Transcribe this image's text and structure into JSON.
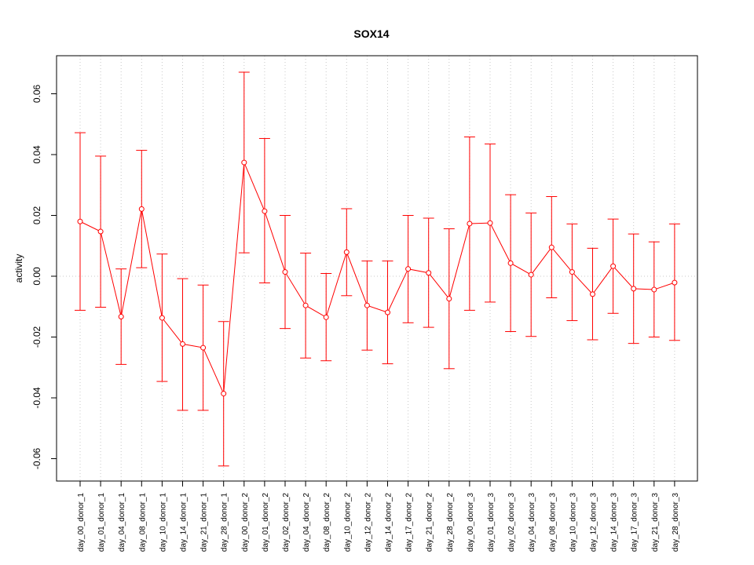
{
  "chart_data": {
    "type": "line",
    "title": "SOX14",
    "xlabel": "",
    "ylabel": "activity",
    "ylim": [
      -0.068,
      0.072
    ],
    "yticks": [
      -0.06,
      -0.04,
      -0.02,
      0.0,
      0.02,
      0.04,
      0.06
    ],
    "ytick_labels": [
      "-0.06",
      "-0.04",
      "-0.02",
      "0.00",
      "0.02",
      "0.04",
      "0.06"
    ],
    "grid": "vertical dotted at each category, dotted horizontal at 0",
    "legend": "none",
    "colors": {
      "series": "#ff0000",
      "grid": "#c8c8c8",
      "axis": "#000000"
    },
    "categories": [
      "day_00_donor_1",
      "day_01_donor_1",
      "day_04_donor_1",
      "day_08_donor_1",
      "day_10_donor_1",
      "day_14_donor_1",
      "day_21_donor_1",
      "day_28_donor_1",
      "day_00_donor_2",
      "day_01_donor_2",
      "day_02_donor_2",
      "day_04_donor_2",
      "day_08_donor_2",
      "day_10_donor_2",
      "day_12_donor_2",
      "day_14_donor_2",
      "day_17_donor_2",
      "day_21_donor_2",
      "day_28_donor_2",
      "day_00_donor_3",
      "day_01_donor_3",
      "day_02_donor_3",
      "day_04_donor_3",
      "day_08_donor_3",
      "day_10_donor_3",
      "day_12_donor_3",
      "day_14_donor_3",
      "day_17_donor_3",
      "day_21_donor_3",
      "day_28_donor_3"
    ],
    "series": [
      {
        "values": [
          0.018,
          0.0147,
          -0.0133,
          0.0221,
          -0.0137,
          -0.0223,
          -0.0235,
          -0.0386,
          0.0374,
          0.0214,
          0.0014,
          -0.0096,
          -0.0135,
          0.0079,
          -0.0096,
          -0.0119,
          0.0024,
          0.0011,
          -0.0074,
          0.0173,
          0.0175,
          0.0043,
          0.0005,
          0.0095,
          0.0014,
          -0.0059,
          0.0033,
          -0.0041,
          -0.0044,
          -0.0021
        ],
        "upper": [
          0.0472,
          0.0395,
          0.0024,
          0.0414,
          0.0073,
          -0.0008,
          -0.0029,
          -0.0149,
          0.0671,
          0.0453,
          0.02,
          0.0076,
          0.0009,
          0.0222,
          0.005,
          0.005,
          0.02,
          0.0191,
          0.0156,
          0.0458,
          0.0435,
          0.0268,
          0.0208,
          0.0262,
          0.0172,
          0.0092,
          0.0188,
          0.0139,
          0.0113,
          0.0172
        ],
        "lower": [
          -0.0112,
          -0.0102,
          -0.029,
          0.0028,
          -0.0346,
          -0.0441,
          -0.0441,
          -0.0624,
          0.0077,
          -0.0022,
          -0.0172,
          -0.0269,
          -0.0278,
          -0.0064,
          -0.0243,
          -0.0288,
          -0.0153,
          -0.0168,
          -0.0304,
          -0.0112,
          -0.0085,
          -0.0182,
          -0.0198,
          -0.0071,
          -0.0146,
          -0.0209,
          -0.0122,
          -0.0221,
          -0.02,
          -0.0211
        ]
      }
    ]
  }
}
